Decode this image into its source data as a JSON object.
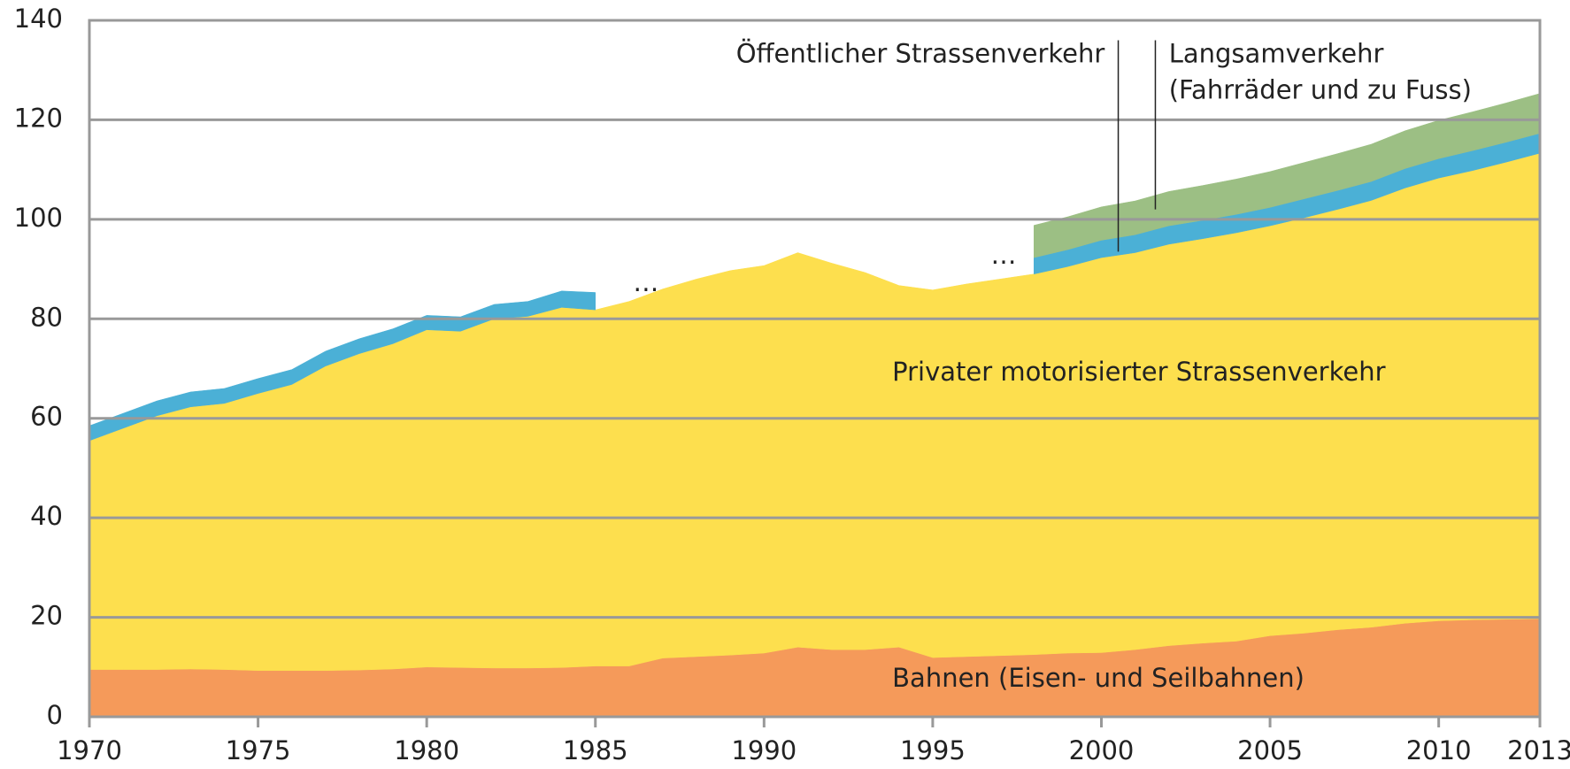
{
  "chart_data": {
    "type": "stacked_area",
    "x": [
      1970,
      1971,
      1972,
      1973,
      1974,
      1975,
      1976,
      1977,
      1978,
      1979,
      1980,
      1981,
      1982,
      1983,
      1984,
      1985,
      1986,
      1987,
      1988,
      1989,
      1990,
      1991,
      1992,
      1993,
      1994,
      1995,
      1996,
      1997,
      1998,
      1999,
      2000,
      2001,
      2002,
      2003,
      2004,
      2005,
      2006,
      2007,
      2008,
      2009,
      2010,
      2011,
      2012,
      2013
    ],
    "series": [
      {
        "name": "Bahnen (Eisen- und Seilbahnen)",
        "color": "#f59a5a",
        "values": [
          9.5,
          9.5,
          9.5,
          9.6,
          9.5,
          9.3,
          9.3,
          9.3,
          9.4,
          9.6,
          10.0,
          9.9,
          9.8,
          9.8,
          9.9,
          10.2,
          10.2,
          11.8,
          12.1,
          12.4,
          12.8,
          14.0,
          13.5,
          13.5,
          14.0,
          11.9,
          12.1,
          12.3,
          12.5,
          12.8,
          12.9,
          13.5,
          14.3,
          14.8,
          15.2,
          16.3,
          16.8,
          17.5,
          18.0,
          18.8,
          19.3,
          19.5,
          19.6,
          19.7
        ]
      },
      {
        "name": "Privater motorisierter Strassenverkehr",
        "color": "#fddf4e",
        "values": [
          46.0,
          48.5,
          51.0,
          52.7,
          53.5,
          55.7,
          57.5,
          61.2,
          63.6,
          65.4,
          67.8,
          67.6,
          70.2,
          70.7,
          72.4,
          71.6,
          73.3,
          74.2,
          75.9,
          77.3,
          77.9,
          79.3,
          77.7,
          75.8,
          72.7,
          73.9,
          74.9,
          75.7,
          76.5,
          77.7,
          79.4,
          79.8,
          80.7,
          81.3,
          82.1,
          82.4,
          83.5,
          84.5,
          85.8,
          87.5,
          89.0,
          90.3,
          91.9,
          93.6
        ]
      },
      {
        "name": "Öffentlicher Strassenverkehr",
        "color": "#4bb0d6",
        "values": [
          3.0,
          3.0,
          3.0,
          3.0,
          3.0,
          3.0,
          3.0,
          3.0,
          3.0,
          3.0,
          2.9,
          2.9,
          2.9,
          3.0,
          3.3,
          3.5,
          null,
          null,
          null,
          null,
          null,
          null,
          null,
          null,
          null,
          null,
          null,
          null,
          3.3,
          3.4,
          3.5,
          3.6,
          3.7,
          3.7,
          3.7,
          3.7,
          3.8,
          3.8,
          3.8,
          3.9,
          3.9,
          4.0,
          4.0,
          4.0
        ]
      },
      {
        "name": "Langsamverkehr",
        "color": "#9cbf84",
        "values": [
          null,
          null,
          null,
          null,
          null,
          null,
          null,
          null,
          null,
          null,
          null,
          null,
          null,
          null,
          null,
          null,
          null,
          null,
          null,
          null,
          null,
          null,
          null,
          null,
          null,
          null,
          null,
          null,
          6.5,
          6.6,
          6.7,
          6.8,
          6.9,
          7.0,
          7.1,
          7.2,
          7.3,
          7.4,
          7.5,
          7.6,
          7.7,
          7.8,
          7.9,
          8.0
        ]
      }
    ],
    "annotations": [
      "(Fahrräder und zu Fuss)",
      "…",
      "…"
    ],
    "xlim": [
      1970,
      2013
    ],
    "xticks": [
      1970,
      1975,
      1980,
      1985,
      1990,
      1995,
      2000,
      2005,
      2010,
      2013
    ],
    "ylim": [
      0,
      140
    ],
    "yticks": [
      0,
      20,
      40,
      60,
      80,
      100,
      120,
      140
    ],
    "grid": true
  }
}
